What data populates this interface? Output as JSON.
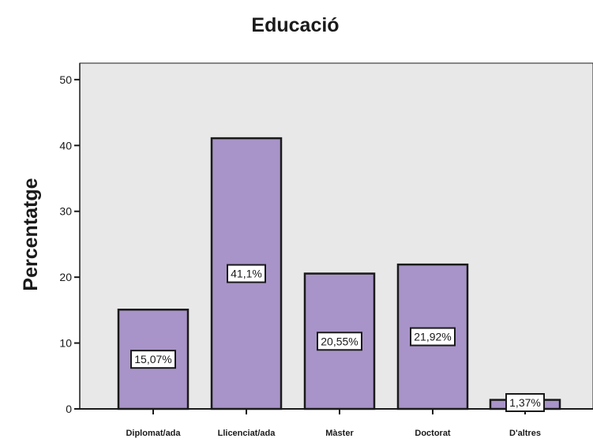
{
  "chart_data": {
    "type": "bar",
    "title": "Educació",
    "xlabel": "",
    "ylabel": "Percentatge",
    "categories": [
      "Diplomat/ada",
      "Llicenciat/ada",
      "Màster",
      "Doctorat",
      "D'altres"
    ],
    "values": [
      15.07,
      41.1,
      20.55,
      21.92,
      1.37
    ],
    "data_labels": [
      "15,07%",
      "41,1%",
      "20,55%",
      "21,92%",
      "1,37%"
    ],
    "yticks": [
      0,
      10,
      20,
      30,
      40,
      50
    ],
    "ylim": [
      0,
      52.5
    ],
    "grid": false,
    "legend": "none",
    "colors": {
      "bar_fill": "#a894c8",
      "bar_stroke": "#1a1a1a",
      "plot_background": "#e8e8e8",
      "label_box": "#ffffff"
    }
  }
}
